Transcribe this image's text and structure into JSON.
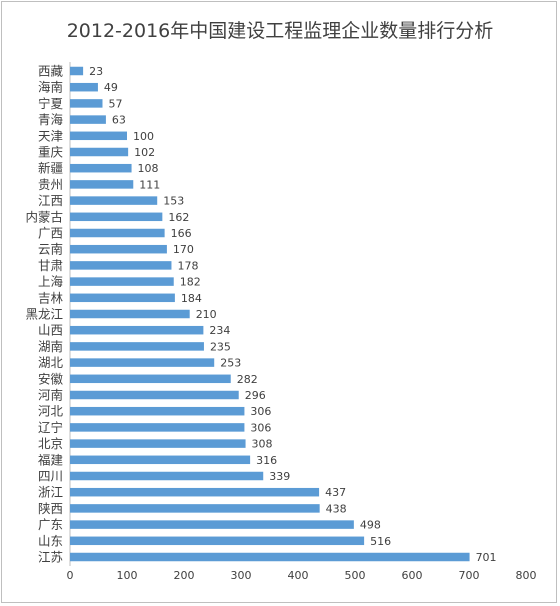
{
  "chart_data": {
    "type": "bar",
    "orientation": "horizontal",
    "title": "2012-2016年中国建设工程监理企业数量排行分析",
    "categories": [
      "西藏",
      "海南",
      "宁夏",
      "青海",
      "天津",
      "重庆",
      "新疆",
      "贵州",
      "江西",
      "内蒙古",
      "广西",
      "云南",
      "甘肃",
      "上海",
      "吉林",
      "黑龙江",
      "山西",
      "湖南",
      "湖北",
      "安徽",
      "河南",
      "河北",
      "辽宁",
      "北京",
      "福建",
      "四川",
      "浙江",
      "陕西",
      "广东",
      "山东",
      "江苏"
    ],
    "values": [
      23,
      49,
      57,
      63,
      100,
      102,
      108,
      111,
      153,
      162,
      166,
      170,
      178,
      182,
      184,
      210,
      234,
      235,
      253,
      282,
      296,
      306,
      306,
      308,
      316,
      339,
      437,
      438,
      498,
      516,
      701
    ],
    "xlim": [
      0,
      800
    ],
    "xticks": [
      0,
      100,
      200,
      300,
      400,
      500,
      600,
      700,
      800
    ],
    "grid": false,
    "legend": "none",
    "bar_color": "#5b9bd5"
  }
}
